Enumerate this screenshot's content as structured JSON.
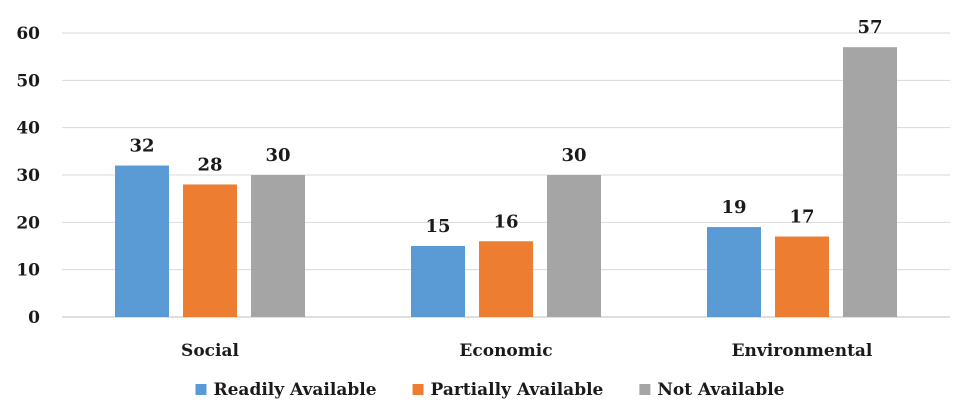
{
  "chart_data": {
    "type": "bar",
    "categories": [
      "Social",
      "Economic",
      "Environmental"
    ],
    "series": [
      {
        "name": "Readily Available",
        "color": "#5b9bd5",
        "values": [
          32,
          15,
          19
        ]
      },
      {
        "name": "Partially Available",
        "color": "#ed7d31",
        "values": [
          28,
          16,
          17
        ]
      },
      {
        "name": "Not Available",
        "color": "#a5a5a5",
        "values": [
          30,
          30,
          57
        ]
      }
    ],
    "ylim": [
      0,
      60
    ],
    "yticks": [
      0,
      10,
      20,
      30,
      40,
      50,
      60
    ],
    "grid": true,
    "legend_position": "bottom",
    "data_labels": true
  }
}
